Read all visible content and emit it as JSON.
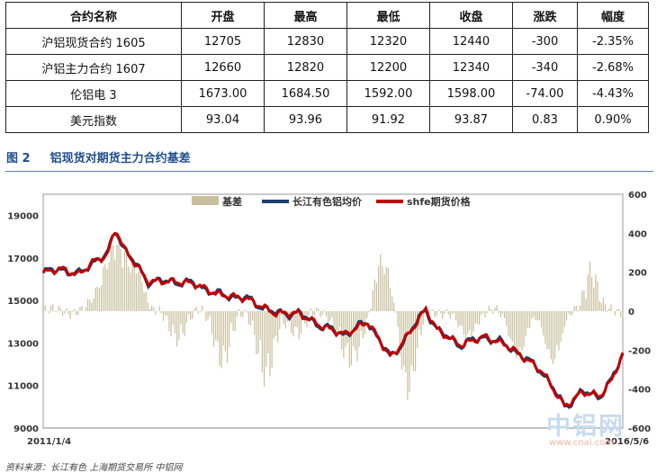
{
  "quote_table": {
    "headers": [
      "合约名称",
      "开盘",
      "最高",
      "最低",
      "收盘",
      "涨跌",
      "幅度"
    ],
    "rows": [
      [
        "沪铝现货合约 1605",
        "12705",
        "12830",
        "12320",
        "12440",
        "-300",
        "-2.35%"
      ],
      [
        "沪铝主力合约 1607",
        "12660",
        "12820",
        "12200",
        "12340",
        "-340",
        "-2.68%"
      ],
      [
        "伦铝电 3",
        "1673.00",
        "1684.50",
        "1592.00",
        "1598.00",
        "-74.00",
        "-4.43%"
      ],
      [
        "美元指数",
        "93.04",
        "93.96",
        "91.92",
        "93.87",
        "0.83",
        "0.90%"
      ]
    ]
  },
  "figure": {
    "number": "图 2",
    "title": "铝现货对期货主力合约基差"
  },
  "source": "资料来源：长江有色  上海期货交易所  中铝网",
  "watermark": {
    "main": "中铝网",
    "sub": "www.cnal.com"
  },
  "chart_data": {
    "type": "line",
    "x_start": "2011/1/4",
    "x_end": "2016/5/6",
    "y_left": {
      "ticks": [
        9000,
        11000,
        13000,
        15000,
        17000,
        19000
      ],
      "range": [
        9000,
        20000
      ]
    },
    "y_right": {
      "ticks": [
        -600,
        -400,
        -200,
        0,
        200,
        400,
        600
      ],
      "range": [
        -600,
        600
      ]
    },
    "legend_position": "top",
    "series": [
      {
        "name": "基差",
        "kind": "bar",
        "axis": "right",
        "color": "#c8bf9c"
      },
      {
        "name": "长江有色铝均价",
        "kind": "line",
        "axis": "left",
        "color": "#1f3f6b"
      },
      {
        "name": "shfe期货价格",
        "kind": "line",
        "axis": "left",
        "color": "#c00000"
      }
    ],
    "x_frac": [
      0,
      0.03,
      0.06,
      0.09,
      0.11,
      0.125,
      0.14,
      0.16,
      0.18,
      0.22,
      0.26,
      0.3,
      0.35,
      0.4,
      0.44,
      0.48,
      0.52,
      0.56,
      0.6,
      0.63,
      0.66,
      0.68,
      0.72,
      0.76,
      0.8,
      0.83,
      0.86,
      0.9,
      0.93,
      0.96,
      0.98,
      1
    ],
    "price": [
      16300,
      16500,
      16200,
      16900,
      17100,
      18400,
      17400,
      16700,
      15900,
      15900,
      15800,
      15300,
      15100,
      14400,
      14400,
      13800,
      13400,
      14000,
      12300,
      13400,
      14600,
      13600,
      12900,
      13300,
      12900,
      12300,
      11700,
      10000,
      10700,
      10500,
      11200,
      12500
    ],
    "basis": {
      "events": [
        {
          "at": 0.125,
          "value": 400,
          "width": 0.03
        },
        {
          "at": 0.165,
          "value": 180,
          "width": 0.015
        },
        {
          "at": 0.23,
          "value": -150,
          "width": 0.02
        },
        {
          "at": 0.31,
          "value": -280,
          "width": 0.02
        },
        {
          "at": 0.385,
          "value": -380,
          "width": 0.02
        },
        {
          "at": 0.44,
          "value": -120,
          "width": 0.02
        },
        {
          "at": 0.53,
          "value": -300,
          "width": 0.025
        },
        {
          "at": 0.58,
          "value": 250,
          "width": 0.015
        },
        {
          "at": 0.6,
          "value": 150,
          "width": 0.015
        },
        {
          "at": 0.63,
          "value": -450,
          "width": 0.02
        },
        {
          "at": 0.73,
          "value": -150,
          "width": 0.02
        },
        {
          "at": 0.82,
          "value": -250,
          "width": 0.02
        },
        {
          "at": 0.88,
          "value": -280,
          "width": 0.02
        },
        {
          "at": 0.945,
          "value": 250,
          "width": 0.015
        }
      ]
    }
  }
}
